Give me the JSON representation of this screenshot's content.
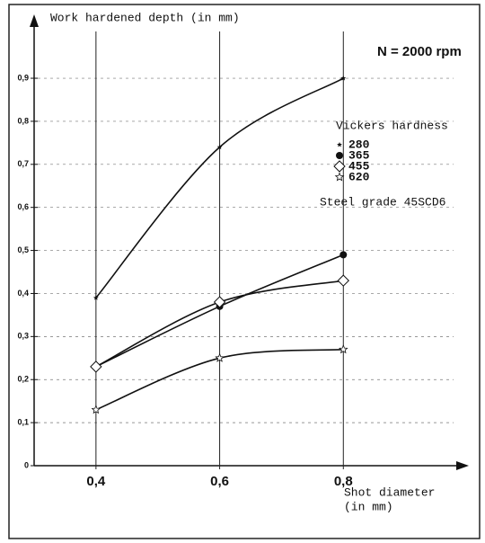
{
  "chart_data": {
    "type": "line",
    "title": "Work hardened depth (in mm)",
    "x_label": [
      "Shot diameter",
      "(in mm)"
    ],
    "annotations": [
      "N = 2000 rpm",
      "Steel grade 45SCD6"
    ],
    "legend_title": "Vickers hardness",
    "x": [
      0.4,
      0.6,
      0.8
    ],
    "series": [
      {
        "name": "280",
        "color": "#111111",
        "marker": "star-small",
        "values": [
          0.39,
          0.74,
          0.9
        ]
      },
      {
        "name": "365",
        "color": "#111111",
        "marker": "circle",
        "values": [
          0.23,
          0.37,
          0.49
        ]
      },
      {
        "name": "455",
        "color": "#111111",
        "marker": "diamond",
        "values": [
          0.23,
          0.38,
          0.43
        ]
      },
      {
        "name": "620",
        "color": "#111111",
        "marker": "star",
        "values": [
          0.13,
          0.25,
          0.27
        ]
      }
    ],
    "xlim": [
      0.3,
      1.0
    ],
    "xticks": [
      {
        "value": 0.4,
        "label": "0,4"
      },
      {
        "value": 0.6,
        "label": "0,6"
      },
      {
        "value": 0.8,
        "label": "0,8"
      }
    ],
    "ylim": [
      0,
      1.04
    ],
    "yticks": [
      0,
      {
        "value": 0.1,
        "label": "0,1"
      },
      {
        "value": 0.2,
        "label": "0,2"
      },
      {
        "value": 0.3,
        "label": "0,3"
      },
      {
        "value": 0.4,
        "label": "0,4"
      },
      {
        "value": 0.5,
        "label": "0,5"
      },
      {
        "value": 0.6,
        "label": "0,6"
      },
      {
        "value": 0.7,
        "label": "0,7"
      },
      {
        "value": 0.8,
        "label": "0,8"
      },
      {
        "value": 0.9,
        "label": "0,9"
      }
    ],
    "grid": true
  }
}
